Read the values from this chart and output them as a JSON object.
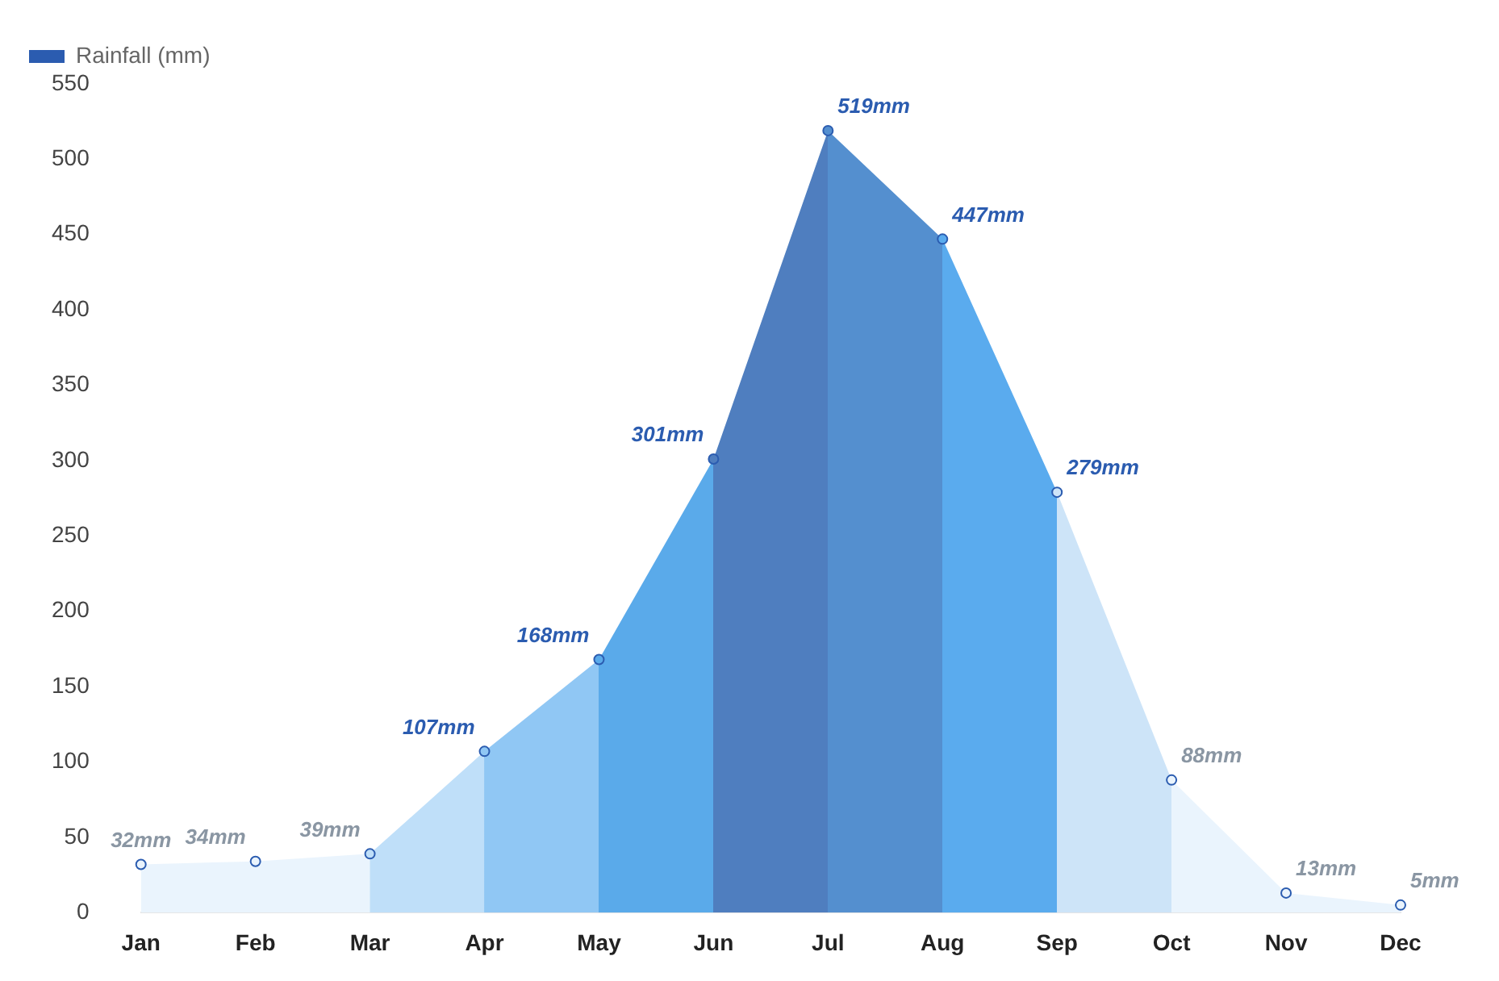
{
  "chart_data": {
    "type": "area",
    "categories": [
      "Jan",
      "Feb",
      "Mar",
      "Apr",
      "May",
      "Jun",
      "Jul",
      "Aug",
      "Sep",
      "Oct",
      "Nov",
      "Dec"
    ],
    "series": [
      {
        "name": "Rainfall (mm)",
        "color": "#2b5cb0",
        "values": [
          32,
          34,
          39,
          107,
          168,
          301,
          519,
          447,
          279,
          88,
          13,
          5
        ],
        "colors": [
          "#eaf4fd",
          "#eaf4fd",
          "#bfdff9",
          "#90c7f4",
          "#5aaaea",
          "#4f7ebf",
          "#548fcf",
          "#5aabee",
          "#cde4f8",
          "#eaf4fd",
          "#eaf4fd",
          "#eaf4fd"
        ],
        "value_labels": [
          "32mm",
          "34mm",
          "39mm",
          "107mm",
          "168mm",
          "301mm",
          "519mm",
          "447mm",
          "279mm",
          "88mm",
          "13mm",
          "5mm"
        ]
      }
    ],
    "ylim": [
      0,
      550
    ],
    "yticks": [
      0,
      50,
      100,
      150,
      200,
      250,
      300,
      350,
      400,
      450,
      500,
      550
    ],
    "legend": "top left",
    "marker": "circle"
  }
}
